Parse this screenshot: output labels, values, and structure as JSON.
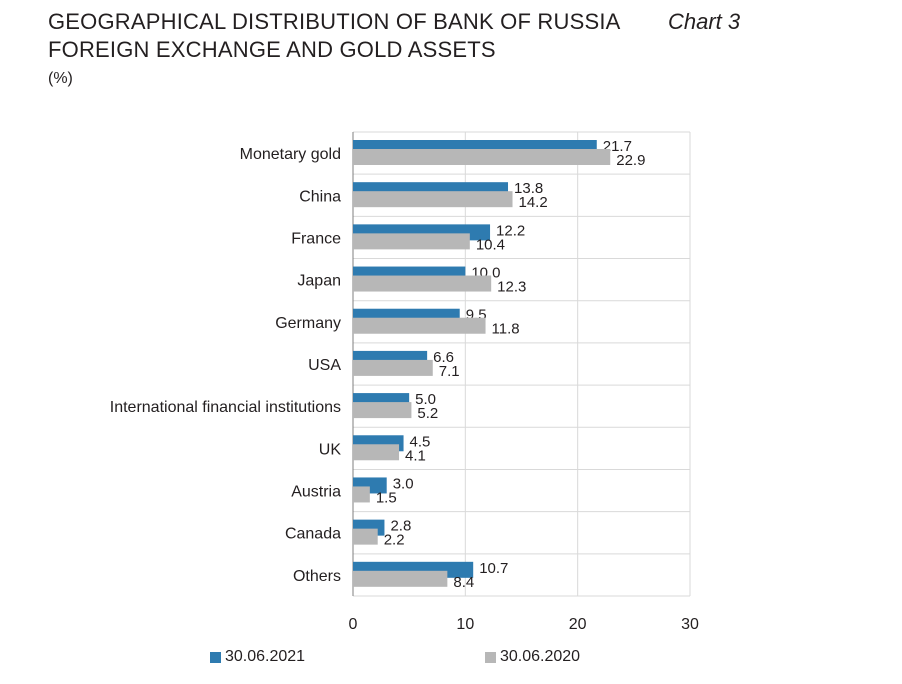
{
  "header": {
    "title_line1": "GEOGRAPHICAL DISTRIBUTION OF BANK OF RUSSIA",
    "title_line2": "FOREIGN EXCHANGE AND GOLD ASSETS",
    "chart_number": "Chart 3",
    "unit": "(%)"
  },
  "colors": {
    "series_2021": "#2e7bb0",
    "series_2020": "#b7b7b7"
  },
  "chart_data": {
    "type": "bar",
    "orientation": "horizontal",
    "title": "GEOGRAPHICAL DISTRIBUTION OF BANK OF RUSSIA FOREIGN EXCHANGE AND GOLD ASSETS",
    "ylabel": "(%)",
    "categories": [
      "Monetary gold",
      "China",
      "France",
      "Japan",
      "Germany",
      "USA",
      "International financial institutions",
      "UK",
      "Austria",
      "Canada",
      "Others"
    ],
    "series": [
      {
        "name": "30.06.2021",
        "values": [
          21.7,
          13.8,
          12.2,
          10.0,
          9.5,
          6.6,
          5.0,
          4.5,
          3.0,
          2.8,
          10.7
        ],
        "labels": [
          "21.7",
          "13.8",
          "12.2",
          "10.0",
          "9.5",
          "6.6",
          "5.0",
          "4.5",
          "3.0",
          "2.8",
          "10.7"
        ]
      },
      {
        "name": "30.06.2020",
        "values": [
          22.9,
          14.2,
          10.4,
          12.3,
          11.8,
          7.1,
          5.2,
          4.1,
          1.5,
          2.2,
          8.4
        ],
        "labels": [
          "22.9",
          "14.2",
          "10.4",
          "12.3",
          "11.8",
          "7.1",
          "5.2",
          "4.1",
          "1.5",
          "2.2",
          "8.4"
        ]
      }
    ],
    "xlim": [
      0,
      30
    ],
    "xticks": [
      "0",
      "10",
      "20",
      "30"
    ],
    "grid": true,
    "legend_position": "bottom"
  }
}
